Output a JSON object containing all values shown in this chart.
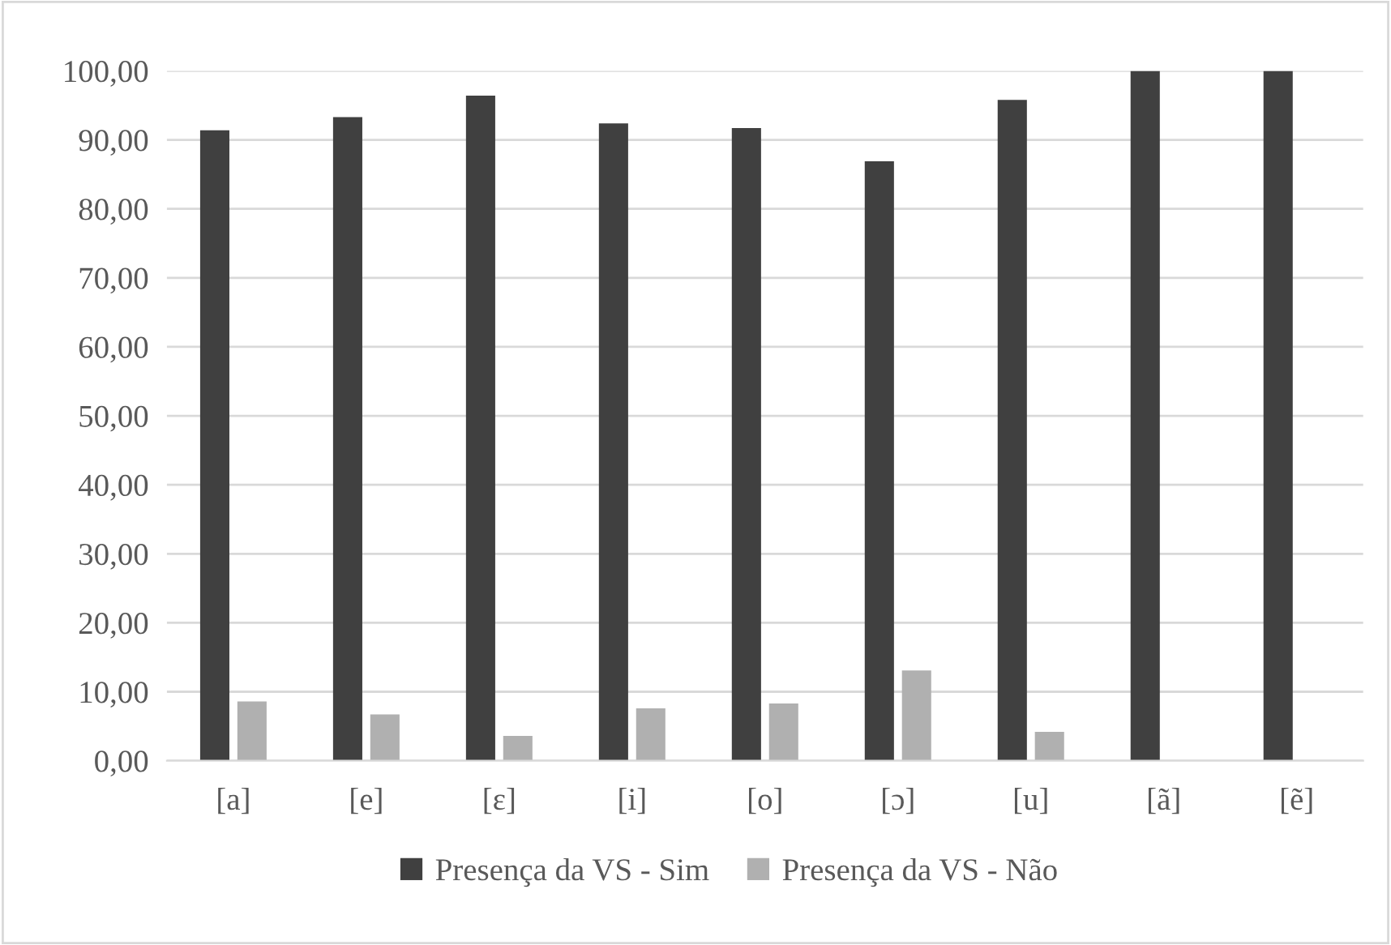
{
  "chart_data": {
    "type": "bar",
    "categories": [
      "[a]",
      "[e]",
      "[ɛ]",
      "[i]",
      "[o]",
      "[ɔ]",
      "[u]",
      "[ã]",
      "[ẽ]"
    ],
    "series": [
      {
        "name": "Presença da VS - Sim",
        "color": "#404040",
        "values": [
          91.4,
          93.3,
          96.4,
          92.4,
          91.7,
          86.9,
          95.8,
          100,
          100
        ]
      },
      {
        "name": "Presença da VS - Não",
        "color": "#b0b0b0",
        "values": [
          8.6,
          6.7,
          3.6,
          7.6,
          8.3,
          13.1,
          4.2,
          0,
          0
        ]
      }
    ],
    "ylim": [
      0,
      100
    ],
    "yticks": [
      {
        "value": 0,
        "label": "0,00"
      },
      {
        "value": 10,
        "label": "10,00"
      },
      {
        "value": 20,
        "label": "20,00"
      },
      {
        "value": 30,
        "label": "30,00"
      },
      {
        "value": 40,
        "label": "40,00"
      },
      {
        "value": 50,
        "label": "50,00"
      },
      {
        "value": 60,
        "label": "60,00"
      },
      {
        "value": 70,
        "label": "70,00"
      },
      {
        "value": 80,
        "label": "80,00"
      },
      {
        "value": 90,
        "label": "90,00"
      },
      {
        "value": 100,
        "label": "100,00"
      }
    ],
    "grid": "y",
    "legend": "bottom"
  }
}
